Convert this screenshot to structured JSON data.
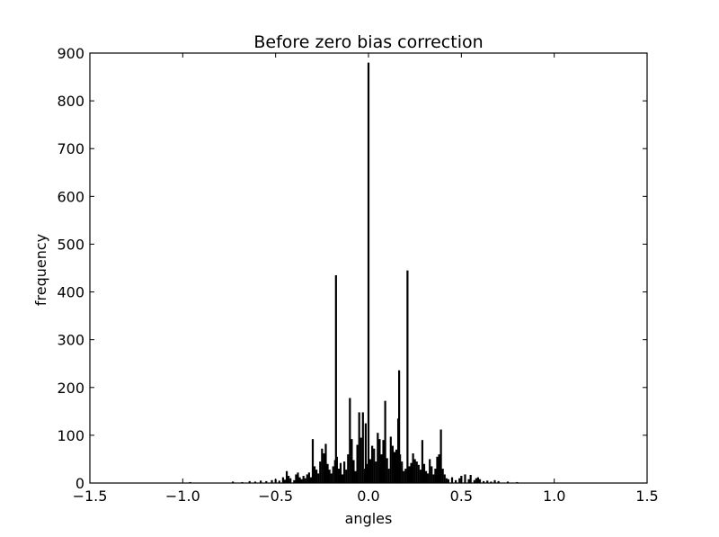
{
  "chart_data": {
    "type": "bar",
    "title": "Before zero bias correction",
    "xlabel": "angles",
    "ylabel": "frequency",
    "xlim": [
      -1.5,
      1.5
    ],
    "ylim": [
      0,
      900
    ],
    "grid": false,
    "x_ticks": [
      -1.5,
      -1.0,
      -0.5,
      0.0,
      0.5,
      1.0,
      1.5
    ],
    "x_tick_labels": [
      "−1.5",
      "−1.0",
      "−0.5",
      "0.0",
      "0.5",
      "1.0",
      "1.5"
    ],
    "y_ticks": [
      0,
      100,
      200,
      300,
      400,
      500,
      600,
      700,
      800,
      900
    ],
    "y_tick_labels": [
      "0",
      "100",
      "200",
      "300",
      "400",
      "500",
      "600",
      "700",
      "800",
      "900"
    ],
    "bar_color": "#000000",
    "bars": [
      {
        "x": -0.96,
        "y": 2
      },
      {
        "x": -0.73,
        "y": 3
      },
      {
        "x": -0.68,
        "y": 2
      },
      {
        "x": -0.64,
        "y": 4
      },
      {
        "x": -0.61,
        "y": 3
      },
      {
        "x": -0.58,
        "y": 5
      },
      {
        "x": -0.55,
        "y": 4
      },
      {
        "x": -0.52,
        "y": 6
      },
      {
        "x": -0.5,
        "y": 8
      },
      {
        "x": -0.48,
        "y": 5
      },
      {
        "x": -0.46,
        "y": 12
      },
      {
        "x": -0.45,
        "y": 7
      },
      {
        "x": -0.44,
        "y": 25
      },
      {
        "x": -0.43,
        "y": 15
      },
      {
        "x": -0.42,
        "y": 10
      },
      {
        "x": -0.4,
        "y": 6
      },
      {
        "x": -0.39,
        "y": 18
      },
      {
        "x": -0.38,
        "y": 22
      },
      {
        "x": -0.37,
        "y": 12
      },
      {
        "x": -0.36,
        "y": 8
      },
      {
        "x": -0.35,
        "y": 15
      },
      {
        "x": -0.34,
        "y": 10
      },
      {
        "x": -0.33,
        "y": 18
      },
      {
        "x": -0.32,
        "y": 22
      },
      {
        "x": -0.31,
        "y": 12
      },
      {
        "x": -0.3,
        "y": 92
      },
      {
        "x": -0.29,
        "y": 35
      },
      {
        "x": -0.28,
        "y": 28
      },
      {
        "x": -0.27,
        "y": 20
      },
      {
        "x": -0.26,
        "y": 45
      },
      {
        "x": -0.25,
        "y": 72
      },
      {
        "x": -0.24,
        "y": 62
      },
      {
        "x": -0.23,
        "y": 82
      },
      {
        "x": -0.22,
        "y": 40
      },
      {
        "x": -0.21,
        "y": 28
      },
      {
        "x": -0.2,
        "y": 20
      },
      {
        "x": -0.19,
        "y": 35
      },
      {
        "x": -0.18,
        "y": 48
      },
      {
        "x": -0.175,
        "y": 435
      },
      {
        "x": -0.17,
        "y": 55
      },
      {
        "x": -0.16,
        "y": 30
      },
      {
        "x": -0.15,
        "y": 42
      },
      {
        "x": -0.14,
        "y": 18
      },
      {
        "x": -0.13,
        "y": 45
      },
      {
        "x": -0.12,
        "y": 28
      },
      {
        "x": -0.11,
        "y": 60
      },
      {
        "x": -0.1,
        "y": 178
      },
      {
        "x": -0.09,
        "y": 92
      },
      {
        "x": -0.08,
        "y": 48
      },
      {
        "x": -0.07,
        "y": 25
      },
      {
        "x": -0.06,
        "y": 80
      },
      {
        "x": -0.05,
        "y": 148
      },
      {
        "x": -0.04,
        "y": 95
      },
      {
        "x": -0.03,
        "y": 148
      },
      {
        "x": -0.02,
        "y": 30
      },
      {
        "x": -0.015,
        "y": 125
      },
      {
        "x": -0.01,
        "y": 40
      },
      {
        "x": 0.0,
        "y": 880
      },
      {
        "x": 0.01,
        "y": 50
      },
      {
        "x": 0.02,
        "y": 78
      },
      {
        "x": 0.03,
        "y": 72
      },
      {
        "x": 0.04,
        "y": 45
      },
      {
        "x": 0.05,
        "y": 105
      },
      {
        "x": 0.06,
        "y": 92
      },
      {
        "x": 0.07,
        "y": 60
      },
      {
        "x": 0.08,
        "y": 90
      },
      {
        "x": 0.09,
        "y": 172
      },
      {
        "x": 0.1,
        "y": 52
      },
      {
        "x": 0.11,
        "y": 30
      },
      {
        "x": 0.12,
        "y": 97
      },
      {
        "x": 0.13,
        "y": 78
      },
      {
        "x": 0.14,
        "y": 65
      },
      {
        "x": 0.15,
        "y": 70
      },
      {
        "x": 0.16,
        "y": 135
      },
      {
        "x": 0.165,
        "y": 236
      },
      {
        "x": 0.17,
        "y": 60
      },
      {
        "x": 0.18,
        "y": 45
      },
      {
        "x": 0.19,
        "y": 25
      },
      {
        "x": 0.2,
        "y": 30
      },
      {
        "x": 0.21,
        "y": 445
      },
      {
        "x": 0.22,
        "y": 35
      },
      {
        "x": 0.23,
        "y": 42
      },
      {
        "x": 0.24,
        "y": 62
      },
      {
        "x": 0.25,
        "y": 50
      },
      {
        "x": 0.26,
        "y": 45
      },
      {
        "x": 0.27,
        "y": 38
      },
      {
        "x": 0.28,
        "y": 28
      },
      {
        "x": 0.29,
        "y": 90
      },
      {
        "x": 0.3,
        "y": 40
      },
      {
        "x": 0.31,
        "y": 25
      },
      {
        "x": 0.32,
        "y": 20
      },
      {
        "x": 0.33,
        "y": 50
      },
      {
        "x": 0.34,
        "y": 35
      },
      {
        "x": 0.35,
        "y": 18
      },
      {
        "x": 0.36,
        "y": 30
      },
      {
        "x": 0.37,
        "y": 55
      },
      {
        "x": 0.38,
        "y": 60
      },
      {
        "x": 0.39,
        "y": 112
      },
      {
        "x": 0.4,
        "y": 30
      },
      {
        "x": 0.41,
        "y": 18
      },
      {
        "x": 0.42,
        "y": 10
      },
      {
        "x": 0.43,
        "y": 8
      },
      {
        "x": 0.45,
        "y": 12
      },
      {
        "x": 0.47,
        "y": 6
      },
      {
        "x": 0.49,
        "y": 10
      },
      {
        "x": 0.5,
        "y": 15
      },
      {
        "x": 0.52,
        "y": 18
      },
      {
        "x": 0.54,
        "y": 8
      },
      {
        "x": 0.55,
        "y": 17
      },
      {
        "x": 0.57,
        "y": 6
      },
      {
        "x": 0.58,
        "y": 10
      },
      {
        "x": 0.59,
        "y": 12
      },
      {
        "x": 0.6,
        "y": 8
      },
      {
        "x": 0.62,
        "y": 4
      },
      {
        "x": 0.64,
        "y": 5
      },
      {
        "x": 0.66,
        "y": 3
      },
      {
        "x": 0.68,
        "y": 6
      },
      {
        "x": 0.7,
        "y": 4
      },
      {
        "x": 0.75,
        "y": 3
      },
      {
        "x": 0.8,
        "y": 2
      },
      {
        "x": 1.22,
        "y": 1
      }
    ]
  }
}
